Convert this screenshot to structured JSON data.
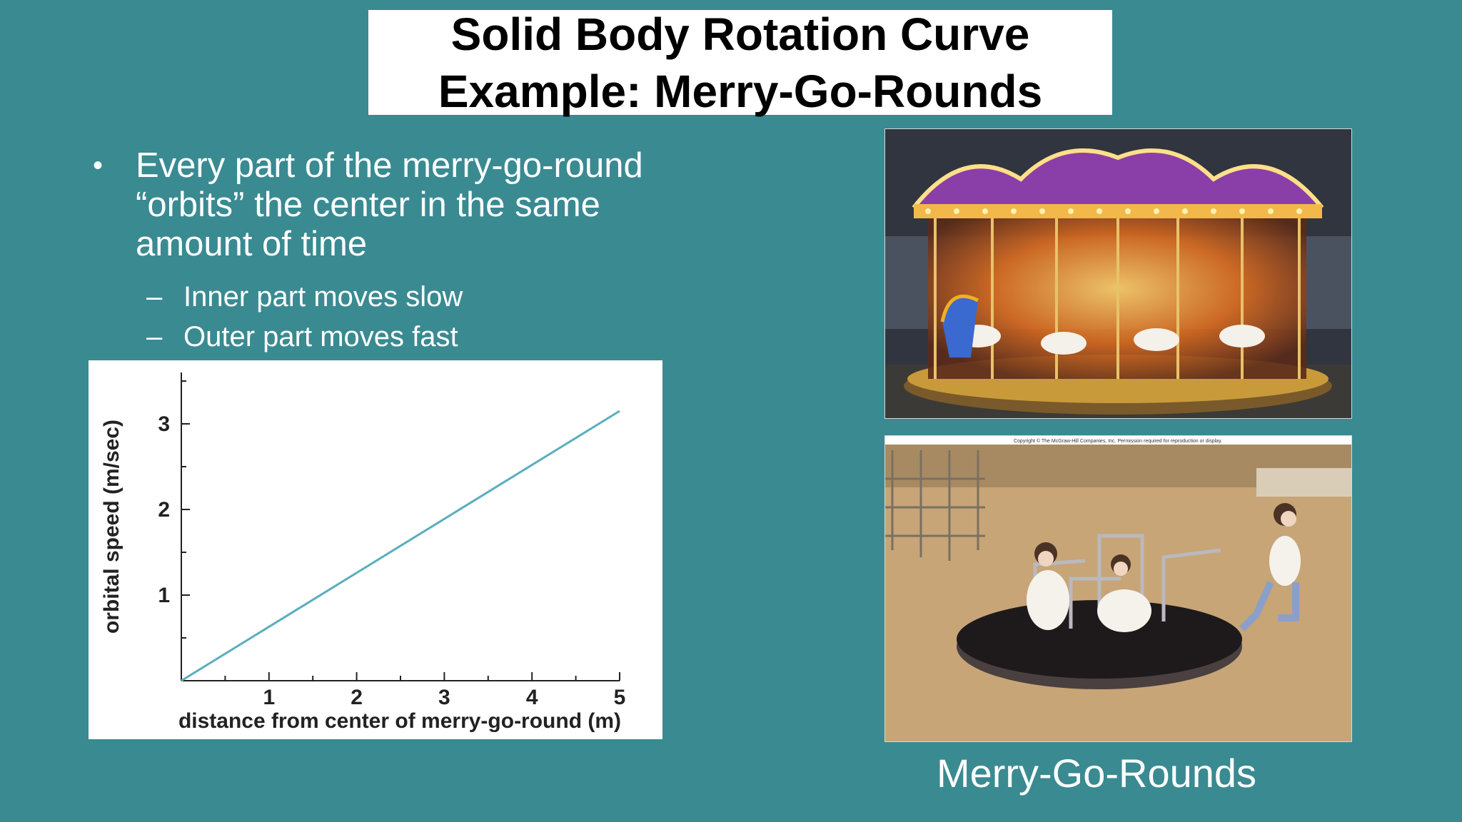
{
  "slide": {
    "title_line1": "Solid Body Rotation Curve",
    "title_line2": "Example: Merry-Go-Rounds",
    "bullet": {
      "marker": "•",
      "line1": "Every part of the merry-go-round",
      "line2": "“orbits” the center in the same",
      "line3": "amount of time"
    },
    "sub_bullets": [
      {
        "marker": "–",
        "text": "Inner part moves slow"
      },
      {
        "marker": "–",
        "text": "Outer part moves fast"
      }
    ],
    "photo_caption": "Merry-Go-Rounds",
    "copyright_text": "Copyright © The McGraw-Hill Companies, Inc. Permission required for reproduction or display."
  },
  "colors": {
    "background": "#3a8a91",
    "line": "#5aaebd",
    "title_box": "#ffffff",
    "text": "#ffffff"
  },
  "chart_data": {
    "type": "line",
    "xlabel": "distance from center of merry-go-round (m)",
    "ylabel": "orbital speed (m/sec)",
    "x_ticks": [
      "1",
      "2",
      "3",
      "4",
      "5"
    ],
    "y_ticks": [
      "1",
      "2",
      "3"
    ],
    "xlim": [
      0,
      5
    ],
    "ylim": [
      0,
      3.6
    ],
    "series": [
      {
        "x": [
          0,
          5
        ],
        "y": [
          0,
          3.15
        ]
      }
    ],
    "grid": false
  }
}
